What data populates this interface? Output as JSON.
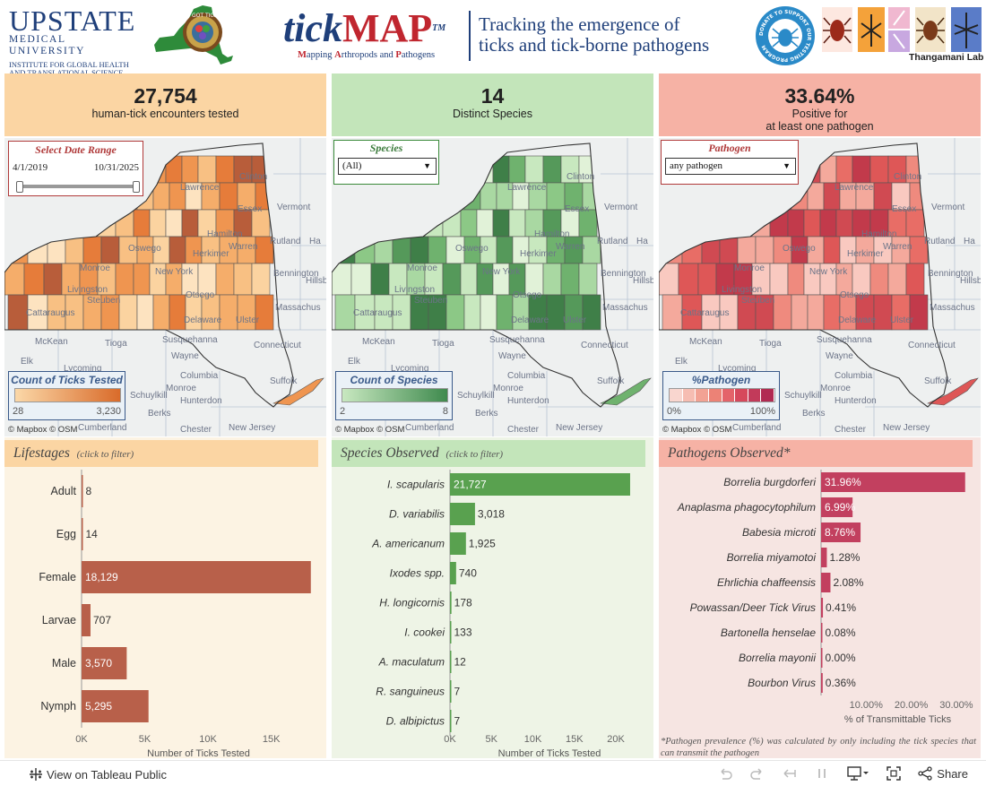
{
  "header": {
    "upstate_line1": "UPSTATE",
    "upstate_line2": "MEDICAL UNIVERSITY",
    "upstate_line3": "INSTITUTE FOR GLOBAL HEALTH",
    "upstate_line4": "AND TRANSLATIONAL SCIENCE",
    "nylogo_text": "GOT TICKS?",
    "tickmap_tick": "tick",
    "tickmap_map": "MAP",
    "tickmap_tm": "TM",
    "subtitle_parts": [
      "M",
      "apping ",
      "A",
      "rthropods and ",
      "P",
      "athogens"
    ],
    "tagline_line1": "Tracking the emergence of",
    "tagline_line2": "ticks and tick-borne pathogens",
    "donate_text": "DONATE TO SUPPORT OUR TESTING PROGRAM",
    "lab_name": "Thangamani Lab"
  },
  "kpis": [
    {
      "value": "27,754",
      "label": "human-tick encounters tested"
    },
    {
      "value": "14",
      "label": "Distinct Species"
    },
    {
      "value": "33.64%",
      "label_line1": "Positive for",
      "label_line2": "at least one pathogen"
    }
  ],
  "filters": {
    "date_range": {
      "title": "Select Date Range",
      "start": "4/1/2019",
      "end": "10/31/2025"
    },
    "species": {
      "title": "Species",
      "value": "(All)"
    },
    "pathogen": {
      "title": "Pathogen",
      "value": "any pathogen"
    }
  },
  "map_labels": {
    "place_names": [
      "Lawrence",
      "Clinton",
      "Essex",
      "Vermont",
      "Ha",
      "Oswego",
      "Rutland",
      "Herkimer",
      "Warren",
      "Monroe",
      "Livingston",
      "Hamilton",
      "New York",
      "Bennington",
      "Hillsb",
      "Steuben",
      "Cattaraugus",
      "Otsego",
      "Delaware",
      "Massachus",
      "McKean",
      "Tioga",
      "Susquehanna",
      "Elk",
      "Wayne",
      "Connecticut",
      "Lycoming",
      "Columbia",
      "Monroe",
      "Schuylkill",
      "Hunterdon",
      "Suffolk",
      "Berks",
      "Cumberland",
      "Chester",
      "New Jersey",
      "Ulster"
    ],
    "credit": "© Mapbox  © OSM"
  },
  "legends": {
    "ticks": {
      "title": "Count of Ticks Tested",
      "min": "28",
      "max": "3,230",
      "color_low": "#fbd8a8",
      "color_high": "#d96b2a"
    },
    "species": {
      "title": "Count of Species",
      "min": "2",
      "max": "8",
      "color_low": "#c8e8c0",
      "color_high": "#3f8a4e"
    },
    "pathogen": {
      "title": "%Pathogen",
      "min": "0%",
      "max": "100%",
      "steps": [
        "#f9d6cf",
        "#f6bdb2",
        "#f2a294",
        "#ec8276",
        "#e4636a",
        "#d6485c",
        "#c23a5a",
        "#b12a52"
      ]
    }
  },
  "colors": {
    "lifestage_bar": "#b8604a",
    "species_bar": "#59a14f",
    "pathogen_bar": "#c2405f",
    "orange_panel": "#fbd5a3",
    "green_panel": "#c3e5ba",
    "red_panel": "#f6b2a5"
  },
  "chart_data": [
    {
      "type": "bar",
      "title": "Lifestages",
      "hint": "(click to filter)",
      "xlabel": "Number of Ticks Tested",
      "ylabel": "",
      "categories": [
        "Adult",
        "Egg",
        "Female",
        "Larvae",
        "Male",
        "Nymph"
      ],
      "values": [
        8,
        14,
        18129,
        707,
        3570,
        5295
      ],
      "value_labels": [
        "8",
        "14",
        "18,129",
        "707",
        "3,570",
        "5,295"
      ],
      "xlim": [
        0,
        18500
      ],
      "xticks": [
        0,
        5000,
        10000,
        15000
      ],
      "xtick_labels": [
        "0K",
        "5K",
        "10K",
        "15K"
      ],
      "grid": false
    },
    {
      "type": "bar",
      "title": "Species Observed",
      "hint": "(click to filter)",
      "xlabel": "Number of Ticks Tested",
      "ylabel": "",
      "categories": [
        "I. scapularis",
        "D. variabilis",
        "A. americanum",
        "Ixodes spp.",
        "H. longicornis",
        "I. cookei",
        "A. maculatum",
        "R. sanguineus",
        "D. albipictus"
      ],
      "values": [
        21727,
        3018,
        1925,
        740,
        178,
        133,
        12,
        7,
        7
      ],
      "value_labels": [
        "21,727",
        "3,018",
        "1,925",
        "740",
        "178",
        "133",
        "12",
        "7",
        "7"
      ],
      "xlim": [
        0,
        24000
      ],
      "xticks": [
        0,
        5000,
        10000,
        15000,
        20000
      ],
      "xtick_labels": [
        "0K",
        "5K",
        "10K",
        "15K",
        "20K"
      ],
      "grid": false
    },
    {
      "type": "bar",
      "title": "Pathogens Observed*",
      "xlabel": "% of Transmittable Ticks",
      "ylabel": "",
      "categories": [
        "Borrelia burgdorferi",
        "Anaplasma phagocytophilum",
        "Babesia microti",
        "Borrelia miyamotoi",
        "Ehrlichia chaffeensis",
        "Powassan/Deer Tick Virus",
        "Bartonella henselae",
        "Borrelia mayonii",
        "Bourbon Virus"
      ],
      "values": [
        31.96,
        6.99,
        8.76,
        1.28,
        2.08,
        0.41,
        0.08,
        0.0,
        0.36
      ],
      "value_labels": [
        "31.96%",
        "6.99%",
        "8.76%",
        "1.28%",
        "2.08%",
        "0.41%",
        "0.08%",
        "0.00%",
        "0.36%"
      ],
      "xlim": [
        0,
        34
      ],
      "xticks": [
        10,
        20,
        30
      ],
      "xtick_labels": [
        "10.00%",
        "20.00%",
        "30.00%"
      ],
      "grid": false,
      "footnote": "*Pathogen prevalence (%) was calculated by only including the tick species that can transmit the pathogen"
    }
  ],
  "toolbar": {
    "view_on": "View on Tableau Public",
    "share": "Share"
  }
}
